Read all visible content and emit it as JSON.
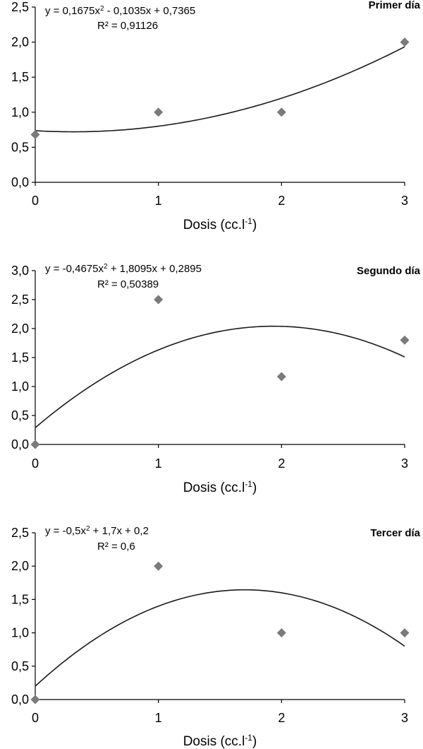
{
  "chart_data": [
    {
      "type": "scatter",
      "title": "Primer día",
      "xlabel": "Dosis (cc.l",
      "xlabel_sup": "-1",
      "xlabel_close": ")",
      "ylabel": "",
      "x_ticks": [
        "0",
        "1",
        "2",
        "3"
      ],
      "y_ticks": [
        "0,0",
        "0,5",
        "1,0",
        "1,5",
        "2,0",
        "2,5"
      ],
      "xlim": [
        0,
        3
      ],
      "ylim": [
        0,
        2.5
      ],
      "grid": false,
      "x": [
        0,
        1,
        2,
        3
      ],
      "y": [
        0.68,
        1.0,
        1.0,
        2.0
      ],
      "trendline": {
        "a": 0.1675,
        "b": -0.1035,
        "c": 0.7365
      },
      "equation_parts": [
        "y = 0,1675x",
        "2",
        " - 0,1035x + 0,7365"
      ],
      "r2_label": "R² = 0,91126",
      "marker_color": "#7a7a7a"
    },
    {
      "type": "scatter",
      "title": "Segundo día",
      "xlabel": "Dosis (cc.l",
      "xlabel_sup": "-1",
      "xlabel_close": ")",
      "ylabel": "",
      "x_ticks": [
        "0",
        "1",
        "2",
        "3"
      ],
      "y_ticks": [
        "0,0",
        "0,5",
        "1,0",
        "1,5",
        "2,0",
        "2,5",
        "3,0"
      ],
      "xlim": [
        0,
        3
      ],
      "ylim": [
        0,
        3.0
      ],
      "grid": false,
      "x": [
        0,
        1,
        2,
        3
      ],
      "y": [
        0.0,
        2.5,
        1.17,
        1.8
      ],
      "trendline": {
        "a": -0.4675,
        "b": 1.8095,
        "c": 0.2895
      },
      "equation_parts": [
        "y = -0,4675x",
        "2",
        " + 1,8095x + 0,2895"
      ],
      "r2_label": "R² = 0,50389",
      "marker_color": "#7a7a7a"
    },
    {
      "type": "scatter",
      "title": "Tercer día",
      "xlabel": "Dosis (cc.l",
      "xlabel_sup": "-1",
      "xlabel_close": ")",
      "ylabel": "",
      "x_ticks": [
        "0",
        "1",
        "2",
        "3"
      ],
      "y_ticks": [
        "0,0",
        "0,5",
        "1,0",
        "1,5",
        "2,0",
        "2,5"
      ],
      "xlim": [
        0,
        3
      ],
      "ylim": [
        0,
        2.5
      ],
      "grid": false,
      "x": [
        0,
        1,
        2,
        3
      ],
      "y": [
        0.0,
        2.0,
        1.0,
        1.0
      ],
      "trendline": {
        "a": -0.5,
        "b": 1.7,
        "c": 0.2
      },
      "equation_parts": [
        "y = -0,5x",
        "2",
        " + 1,7x + 0,2"
      ],
      "r2_label": "R² = 0,6",
      "marker_color": "#7a7a7a"
    }
  ]
}
